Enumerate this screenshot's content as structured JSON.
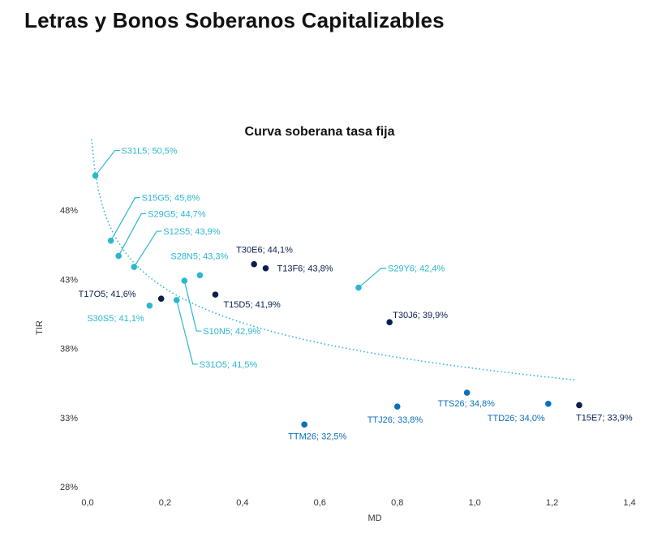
{
  "page": {
    "title": "Letras y Bonos Soberanos Capitalizables"
  },
  "colors": {
    "lecap": "#2bb7cf",
    "hard": "#0b1f4d",
    "dual": "#0a6fb8",
    "trend": "#2bb7cf",
    "axis": "#333333"
  },
  "chart_data": {
    "type": "scatter",
    "title": "Curva soberana tasa fija",
    "xlabel": "MD",
    "ylabel": "TIR",
    "xlim": [
      0,
      1.4
    ],
    "ylim": [
      28,
      52
    ],
    "x_ticks": [
      {
        "value": 0.0,
        "label": "0,0"
      },
      {
        "value": 0.2,
        "label": "0,2"
      },
      {
        "value": 0.4,
        "label": "0,4"
      },
      {
        "value": 0.6,
        "label": "0,6"
      },
      {
        "value": 0.8,
        "label": "0,8"
      },
      {
        "value": 1.0,
        "label": "1,0"
      },
      {
        "value": 1.2,
        "label": "1,2"
      },
      {
        "value": 1.4,
        "label": "1,4"
      }
    ],
    "y_ticks": [
      {
        "value": 28,
        "label": "28%"
      },
      {
        "value": 33,
        "label": "33%"
      },
      {
        "value": 38,
        "label": "38%"
      },
      {
        "value": 43,
        "label": "43%"
      },
      {
        "value": 48,
        "label": "48%"
      }
    ],
    "trendline": {
      "style": "dotted",
      "type": "logarithmic",
      "x_range": [
        0.01,
        1.26
      ]
    },
    "points": [
      {
        "name": "S31L5",
        "x": 0.02,
        "y": 50.5,
        "group": "lecap",
        "label": "S31L5; 50,5%"
      },
      {
        "name": "S15G5",
        "x": 0.06,
        "y": 45.8,
        "group": "lecap",
        "label": "S15G5; 45,8%"
      },
      {
        "name": "S29G5",
        "x": 0.08,
        "y": 44.7,
        "group": "lecap",
        "label": "S29G5; 44,7%"
      },
      {
        "name": "S12S5",
        "x": 0.12,
        "y": 43.9,
        "group": "lecap",
        "label": "S12S5; 43,9%"
      },
      {
        "name": "S30S5",
        "x": 0.16,
        "y": 41.1,
        "group": "lecap",
        "label": "S30S5; 41,1%"
      },
      {
        "name": "T17O5",
        "x": 0.19,
        "y": 41.6,
        "group": "hard",
        "label": "T17O5; 41,6%"
      },
      {
        "name": "S31O5",
        "x": 0.23,
        "y": 41.5,
        "group": "lecap",
        "label": "S31O5; 41,5%"
      },
      {
        "name": "S10N5",
        "x": 0.25,
        "y": 42.9,
        "group": "lecap",
        "label": "S10N5; 42,9%"
      },
      {
        "name": "S28N5",
        "x": 0.29,
        "y": 43.3,
        "group": "lecap",
        "label": "S28N5; 43,3%"
      },
      {
        "name": "T15D5",
        "x": 0.33,
        "y": 41.9,
        "group": "hard",
        "label": "T15D5; 41,9%"
      },
      {
        "name": "T30E6",
        "x": 0.43,
        "y": 44.1,
        "group": "hard",
        "label": "T30E6; 44,1%"
      },
      {
        "name": "T13F6",
        "x": 0.46,
        "y": 43.8,
        "group": "hard",
        "label": "T13F6; 43,8%"
      },
      {
        "name": "TTM26",
        "x": 0.56,
        "y": 32.5,
        "group": "dual",
        "label": "TTM26; 32,5%"
      },
      {
        "name": "S29Y6",
        "x": 0.7,
        "y": 42.4,
        "group": "lecap",
        "label": "S29Y6; 42,4%"
      },
      {
        "name": "T30J6",
        "x": 0.78,
        "y": 39.9,
        "group": "hard",
        "label": "T30J6; 39,9%"
      },
      {
        "name": "TTJ26",
        "x": 0.8,
        "y": 33.8,
        "group": "dual",
        "label": "TTJ26; 33,8%"
      },
      {
        "name": "TTS26",
        "x": 0.98,
        "y": 34.8,
        "group": "dual",
        "label": "TTS26; 34,8%"
      },
      {
        "name": "TTD26",
        "x": 1.19,
        "y": 34.0,
        "group": "dual",
        "label": "TTD26; 34,0%"
      },
      {
        "name": "T15E7",
        "x": 1.27,
        "y": 33.9,
        "group": "hard",
        "label": "T15E7; 33,9%"
      }
    ]
  }
}
